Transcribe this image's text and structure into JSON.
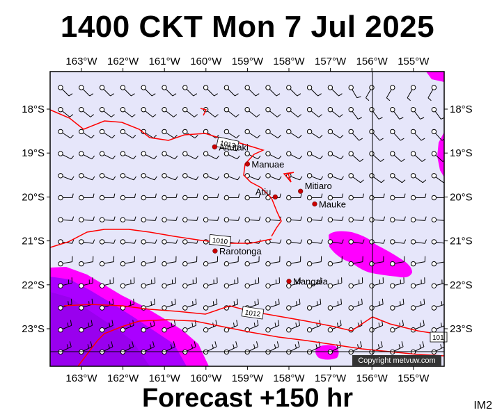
{
  "title": "1400 CKT Mon 7 Jul 2025",
  "footer": "Forecast +150 hr",
  "im_code": "IM2",
  "copyright": "Copyright metvuw.com",
  "colors": {
    "background": "#e6e6fa",
    "isobar": "#ff0000",
    "place_dot": "#cc0000",
    "rain_light": "#ff00ff",
    "rain_heavy": "#aa00ff",
    "rain_mid": "#cc33ff"
  },
  "longitude_labels": [
    "163°W",
    "162°W",
    "161°W",
    "160°W",
    "159°W",
    "158°W",
    "157°W",
    "156°W",
    "155°W"
  ],
  "latitude_labels": [
    "18°S",
    "19°S",
    "20°S",
    "21°S",
    "22°S",
    "23°S"
  ],
  "places": [
    {
      "name": "Aitutaki",
      "lon": -159.79,
      "lat": -18.86
    },
    {
      "name": "Manuae",
      "lon": -159.0,
      "lat": -19.25
    },
    {
      "name": "Mitiaro",
      "lon": -157.72,
      "lat": -19.87
    },
    {
      "name": "Atiu",
      "lon": -158.33,
      "lat": -20.0
    },
    {
      "name": "Mauke",
      "lon": -157.38,
      "lat": -20.16
    },
    {
      "name": "Rarotonga",
      "lon": -159.78,
      "lat": -21.23
    },
    {
      "name": "Mangaia",
      "lon": -158.0,
      "lat": -21.92
    }
  ],
  "isobar_labels": [
    "1013",
    "1010",
    "1012",
    "101"
  ]
}
